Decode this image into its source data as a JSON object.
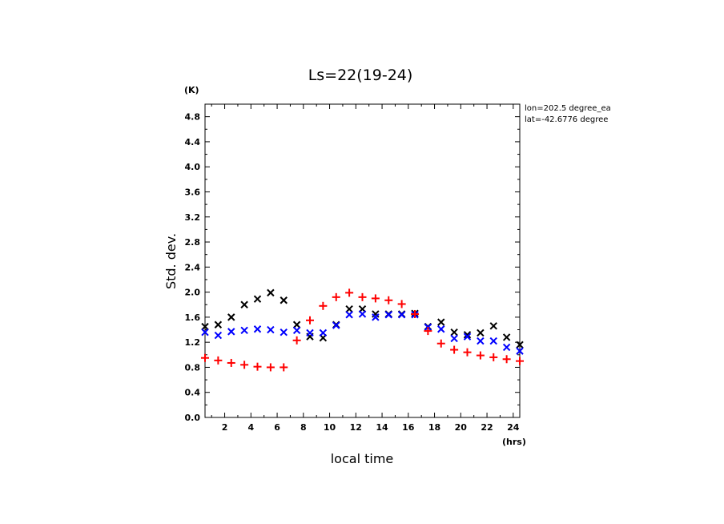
{
  "chart_data": {
    "type": "scatter",
    "title": "Ls=22(19-24)",
    "xlabel": "local time",
    "ylabel": "Std. dev.",
    "x_unit": "(hrs)",
    "y_unit": "(K)",
    "annotations": [
      "lon=202.5 degree_ea",
      "lat=-42.6776 degree"
    ],
    "xlim": [
      0.5,
      24.5
    ],
    "ylim": [
      0,
      5.0
    ],
    "xticks": [
      2,
      4,
      6,
      8,
      10,
      12,
      14,
      16,
      18,
      20,
      22,
      24
    ],
    "yticks": [
      0.0,
      0.4,
      0.8,
      1.2,
      1.6,
      2.0,
      2.4,
      2.8,
      3.2,
      3.6,
      4.0,
      4.4,
      4.8
    ],
    "ytick_labels": [
      "0.0",
      "0.4",
      "0.8",
      "1.2",
      "1.6",
      "2.0",
      "2.4",
      "2.8",
      "3.2",
      "3.6",
      "4.0",
      "4.4",
      "4.8"
    ],
    "grid": false,
    "x": [
      0.5,
      1.5,
      2.5,
      3.5,
      4.5,
      5.5,
      6.5,
      7.5,
      8.5,
      9.5,
      10.5,
      11.5,
      12.5,
      13.5,
      14.5,
      15.5,
      16.5,
      17.5,
      18.5,
      19.5,
      20.5,
      21.5,
      22.5,
      23.5,
      24.5
    ],
    "series": [
      {
        "marker": "x",
        "color": "#000000",
        "values": [
          1.45,
          1.48,
          1.6,
          1.8,
          1.89,
          1.99,
          1.87,
          1.48,
          1.29,
          1.27,
          1.48,
          1.73,
          1.73,
          1.65,
          1.65,
          1.65,
          1.66,
          1.45,
          1.52,
          1.36,
          1.32,
          1.35,
          1.46,
          1.28,
          1.16
        ]
      },
      {
        "marker": "x",
        "color": "#0000ff",
        "values": [
          1.36,
          1.31,
          1.37,
          1.39,
          1.41,
          1.4,
          1.36,
          1.39,
          1.35,
          1.35,
          1.47,
          1.64,
          1.65,
          1.6,
          1.64,
          1.64,
          1.64,
          1.44,
          1.41,
          1.26,
          1.29,
          1.22,
          1.22,
          1.12,
          1.06
        ]
      },
      {
        "marker": "+",
        "color": "#ff0000",
        "values": [
          0.95,
          0.91,
          0.87,
          0.84,
          0.81,
          0.8,
          0.8,
          1.23,
          1.55,
          1.78,
          1.92,
          1.99,
          1.92,
          1.9,
          1.87,
          1.81,
          1.65,
          1.38,
          1.18,
          1.08,
          1.04,
          0.99,
          0.96,
          0.93,
          0.9
        ]
      }
    ]
  }
}
